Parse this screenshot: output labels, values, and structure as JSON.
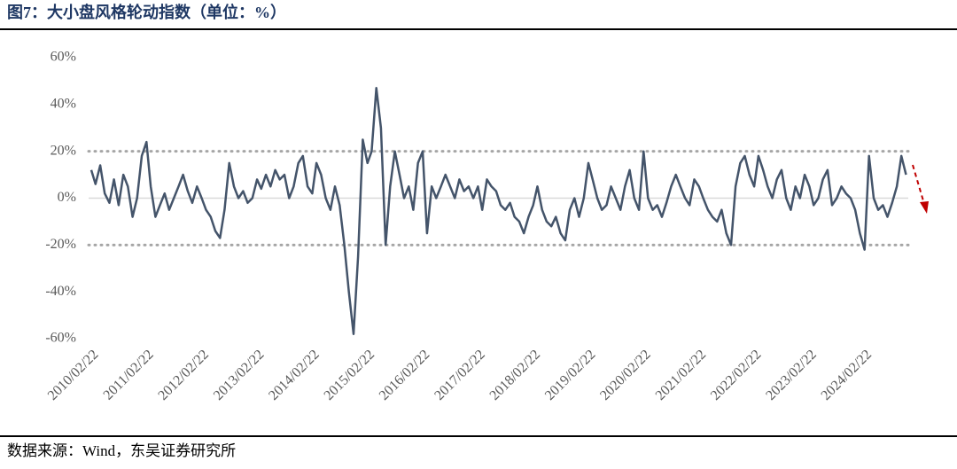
{
  "chart_data": {
    "type": "line",
    "title": "图7：大小盘风格轮动指数（单位：%）",
    "source": "数据来源：Wind，东吴证券研究所",
    "x": [
      "2010/02/22",
      "2010/03/22",
      "2010/04/22",
      "2010/05/22",
      "2010/06/22",
      "2010/07/22",
      "2010/08/22",
      "2010/09/22",
      "2010/10/22",
      "2010/11/22",
      "2010/12/22",
      "2011/01/22",
      "2011/02/22",
      "2011/03/22",
      "2011/04/22",
      "2011/05/22",
      "2011/06/22",
      "2011/07/22",
      "2011/08/22",
      "2011/09/22",
      "2011/10/22",
      "2011/11/22",
      "2011/12/22",
      "2012/01/22",
      "2012/02/22",
      "2012/03/22",
      "2012/04/22",
      "2012/05/22",
      "2012/06/22",
      "2012/07/22",
      "2012/08/22",
      "2012/09/22",
      "2012/10/22",
      "2012/11/22",
      "2012/12/22",
      "2013/01/22",
      "2013/02/22",
      "2013/03/22",
      "2013/04/22",
      "2013/05/22",
      "2013/06/22",
      "2013/07/22",
      "2013/08/22",
      "2013/09/22",
      "2013/10/22",
      "2013/11/22",
      "2013/12/22",
      "2014/01/22",
      "2014/02/22",
      "2014/03/22",
      "2014/04/22",
      "2014/05/22",
      "2014/06/22",
      "2014/07/22",
      "2014/08/22",
      "2014/09/22",
      "2014/10/22",
      "2014/11/22",
      "2014/12/22",
      "2015/01/22",
      "2015/02/22",
      "2015/03/22",
      "2015/04/22",
      "2015/05/22",
      "2015/06/22",
      "2015/07/22",
      "2015/08/22",
      "2015/09/22",
      "2015/10/22",
      "2015/11/22",
      "2015/12/22",
      "2016/01/22",
      "2016/02/22",
      "2016/03/22",
      "2016/04/22",
      "2016/05/22",
      "2016/06/22",
      "2016/07/22",
      "2016/08/22",
      "2016/09/22",
      "2016/10/22",
      "2016/11/22",
      "2016/12/22",
      "2017/01/22",
      "2017/02/22",
      "2017/03/22",
      "2017/04/22",
      "2017/05/22",
      "2017/06/22",
      "2017/07/22",
      "2017/08/22",
      "2017/09/22",
      "2017/10/22",
      "2017/11/22",
      "2017/12/22",
      "2018/01/22",
      "2018/02/22",
      "2018/03/22",
      "2018/04/22",
      "2018/05/22",
      "2018/06/22",
      "2018/07/22",
      "2018/08/22",
      "2018/09/22",
      "2018/10/22",
      "2018/11/22",
      "2018/12/22",
      "2019/01/22",
      "2019/02/22",
      "2019/03/22",
      "2019/04/22",
      "2019/05/22",
      "2019/06/22",
      "2019/07/22",
      "2019/08/22",
      "2019/09/22",
      "2019/10/22",
      "2019/11/22",
      "2019/12/22",
      "2020/01/22",
      "2020/02/22",
      "2020/03/22",
      "2020/04/22",
      "2020/05/22",
      "2020/06/22",
      "2020/07/22",
      "2020/08/22",
      "2020/09/22",
      "2020/10/22",
      "2020/11/22",
      "2020/12/22",
      "2021/01/22",
      "2021/02/22",
      "2021/03/22",
      "2021/04/22",
      "2021/05/22",
      "2021/06/22",
      "2021/07/22",
      "2021/08/22",
      "2021/09/22",
      "2021/10/22",
      "2021/11/22",
      "2021/12/22",
      "2022/01/22",
      "2022/02/22",
      "2022/03/22",
      "2022/04/22",
      "2022/05/22",
      "2022/06/22",
      "2022/07/22",
      "2022/08/22",
      "2022/09/22",
      "2022/10/22",
      "2022/11/22",
      "2022/12/22",
      "2023/01/22",
      "2023/02/22",
      "2023/03/22",
      "2023/04/22",
      "2023/05/22",
      "2023/06/22",
      "2023/07/22",
      "2023/08/22",
      "2023/09/22",
      "2023/10/22",
      "2023/11/22",
      "2023/12/22",
      "2024/01/22",
      "2024/02/22",
      "2024/03/22",
      "2024/04/22",
      "2024/05/22",
      "2024/06/22",
      "2024/07/22",
      "2024/08/22",
      "2024/09/22",
      "2024/10/22",
      "2024/11/22"
    ],
    "series": [
      {
        "color": "#44546a",
        "values": [
          12,
          6,
          14,
          2,
          -2,
          8,
          -3,
          10,
          5,
          -8,
          0,
          18,
          24,
          5,
          -8,
          -3,
          2,
          -5,
          0,
          5,
          10,
          3,
          -2,
          5,
          0,
          -5,
          -8,
          -14,
          -17,
          -5,
          15,
          5,
          0,
          3,
          -2,
          0,
          8,
          4,
          10,
          5,
          12,
          8,
          10,
          0,
          5,
          15,
          18,
          5,
          2,
          15,
          10,
          0,
          -5,
          5,
          -3,
          -20,
          -40,
          -58,
          -25,
          25,
          15,
          20,
          47,
          30,
          -20,
          5,
          20,
          10,
          0,
          5,
          -5,
          15,
          20,
          -15,
          5,
          0,
          5,
          10,
          5,
          0,
          8,
          3,
          5,
          0,
          5,
          -5,
          8,
          5,
          3,
          -3,
          -5,
          -2,
          -8,
          -10,
          -15,
          -8,
          -3,
          5,
          -5,
          -10,
          -12,
          -8,
          -15,
          -18,
          -5,
          0,
          -8,
          0,
          15,
          8,
          0,
          -5,
          -3,
          5,
          0,
          -5,
          5,
          12,
          0,
          -5,
          20,
          0,
          -5,
          -3,
          -8,
          -2,
          5,
          10,
          5,
          0,
          -3,
          8,
          5,
          0,
          -5,
          -8,
          -10,
          -5,
          -15,
          -20,
          5,
          15,
          18,
          10,
          5,
          18,
          12,
          5,
          0,
          8,
          12,
          0,
          -5,
          5,
          0,
          10,
          5,
          -3,
          0,
          8,
          12,
          -3,
          0,
          5,
          2,
          0,
          -5,
          -15,
          -22,
          18,
          0,
          -5,
          -3,
          -8,
          -2,
          5,
          18,
          10
        ]
      }
    ],
    "xticks": [
      "2010/02/22",
      "2011/02/22",
      "2012/02/22",
      "2013/02/22",
      "2014/02/22",
      "2015/02/22",
      "2016/02/22",
      "2017/02/22",
      "2018/02/22",
      "2019/02/22",
      "2020/02/22",
      "2021/02/22",
      "2022/02/22",
      "2023/02/22",
      "2024/02/22"
    ],
    "ylim": [
      -60,
      60
    ],
    "yticks": [
      {
        "value": -60,
        "label": "-60%"
      },
      {
        "value": -40,
        "label": "-40%"
      },
      {
        "value": -20,
        "label": "-20%"
      },
      {
        "value": 0,
        "label": "0%"
      },
      {
        "value": 20,
        "label": "20%"
      },
      {
        "value": 40,
        "label": "40%"
      },
      {
        "value": 60,
        "label": "60%"
      }
    ],
    "hlines": [
      20,
      -20
    ]
  }
}
